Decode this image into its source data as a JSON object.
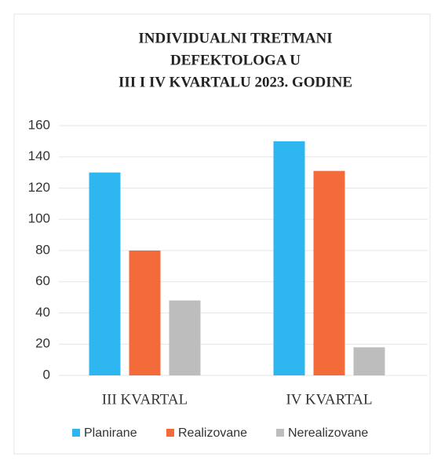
{
  "chart_data": {
    "type": "bar",
    "title": [
      "INDIVIDUALNI  TRETMANI",
      "DEFEKTOLOGA  U",
      "III  I IV  KVARTALU  2023. GODINE"
    ],
    "categories": [
      "III KVARTAL",
      "IV KVARTAL"
    ],
    "series": [
      {
        "name": "Planirane",
        "color": "#2eb6f0",
        "values": [
          130,
          150
        ]
      },
      {
        "name": "Realizovane",
        "color": "#f26b38",
        "values": [
          80,
          131
        ]
      },
      {
        "name": "Nerealizovane",
        "color": "#bdbdbd",
        "values": [
          48,
          18
        ]
      }
    ],
    "ylim": [
      0,
      160
    ],
    "yticks": [
      0,
      20,
      40,
      60,
      80,
      100,
      120,
      140,
      160
    ],
    "grid": true,
    "legend": "bottom"
  }
}
